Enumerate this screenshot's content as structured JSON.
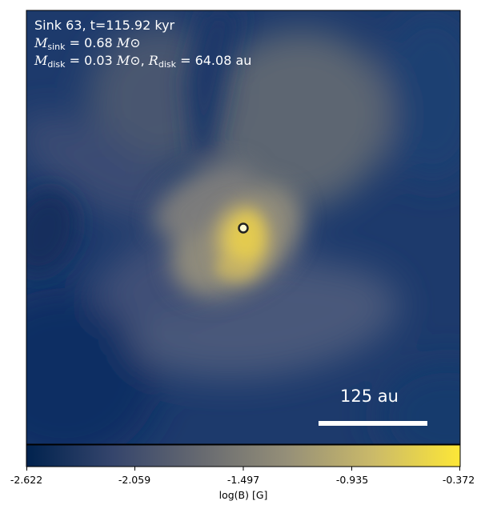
{
  "annotation": {
    "line1": "Sink 63, t=115.92 kyr",
    "m_sink_label": "M",
    "m_sink_sub": "sink",
    "m_sink_value": " = 0.68 ",
    "m_disk_label": "M",
    "m_disk_sub": "disk",
    "m_disk_value": " = 0.03 ",
    "r_disk_label": "R",
    "r_disk_sub": "disk",
    "r_disk_value": " = 64.08 au",
    "sun_symbol": "M⊙",
    "separator": ", "
  },
  "scale_bar": {
    "label": "125 au"
  },
  "colorbar": {
    "label": "log(B) [G]",
    "ticks": [
      "-2.622",
      "-2.059",
      "-1.497",
      "-0.935",
      "-0.372"
    ],
    "colors": [
      "#00224e",
      "#35456c",
      "#666970",
      "#958f78",
      "#cbba69",
      "#fde737"
    ]
  },
  "sink_marker": {
    "fill": "#fffbd0",
    "stroke": "#222222"
  }
}
